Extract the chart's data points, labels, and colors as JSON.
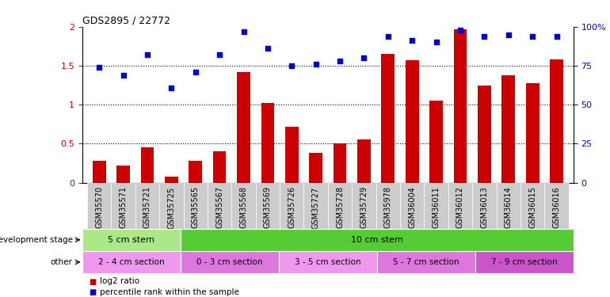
{
  "title": "GDS2895 / 22772",
  "samples": [
    "GSM35570",
    "GSM35571",
    "GSM35721",
    "GSM35725",
    "GSM35565",
    "GSM35567",
    "GSM35568",
    "GSM35569",
    "GSM35726",
    "GSM35727",
    "GSM35728",
    "GSM35729",
    "GSM35978",
    "GSM36004",
    "GSM36011",
    "GSM36012",
    "GSM36013",
    "GSM36014",
    "GSM36015",
    "GSM36016"
  ],
  "log2_ratio": [
    0.28,
    0.22,
    0.45,
    0.08,
    0.28,
    0.4,
    1.42,
    1.02,
    0.72,
    0.38,
    0.5,
    0.55,
    1.65,
    1.57,
    1.05,
    1.97,
    1.25,
    1.38,
    1.28,
    1.58
  ],
  "percentile": [
    74,
    69,
    82,
    61,
    71,
    82,
    97,
    86,
    75,
    76,
    78,
    80,
    94,
    91,
    90,
    98,
    94,
    95,
    94,
    94
  ],
  "bar_color": "#cc0000",
  "scatter_color": "#0000cc",
  "ylim_left": [
    0,
    2.0
  ],
  "ylim_right": [
    0,
    100
  ],
  "yticks_left": [
    0,
    0.5,
    1.0,
    1.5,
    2.0
  ],
  "yticks_right": [
    0,
    25,
    50,
    75,
    100
  ],
  "yticklabels_right": [
    "0",
    "25",
    "50",
    "75",
    "100%"
  ],
  "dotted_lines": [
    0.5,
    1.0,
    1.5
  ],
  "dev_stage_groups": [
    {
      "label": "5 cm stem",
      "start": 0,
      "end": 4,
      "color": "#aae888"
    },
    {
      "label": "10 cm stem",
      "start": 4,
      "end": 20,
      "color": "#55cc33"
    }
  ],
  "other_groups": [
    {
      "label": "2 - 4 cm section",
      "start": 0,
      "end": 4,
      "color": "#ee99ee"
    },
    {
      "label": "0 - 3 cm section",
      "start": 4,
      "end": 8,
      "color": "#dd77dd"
    },
    {
      "label": "3 - 5 cm section",
      "start": 8,
      "end": 12,
      "color": "#ee99ee"
    },
    {
      "label": "5 - 7 cm section",
      "start": 12,
      "end": 16,
      "color": "#dd77dd"
    },
    {
      "label": "7 - 9 cm section",
      "start": 16,
      "end": 20,
      "color": "#cc55cc"
    }
  ],
  "dev_stage_label": "development stage",
  "other_label": "other",
  "legend_items": [
    {
      "label": "log2 ratio",
      "color": "#cc0000"
    },
    {
      "label": "percentile rank within the sample",
      "color": "#0000cc"
    }
  ],
  "tick_label_color": "#555555",
  "xtick_bg_color": "#cccccc"
}
